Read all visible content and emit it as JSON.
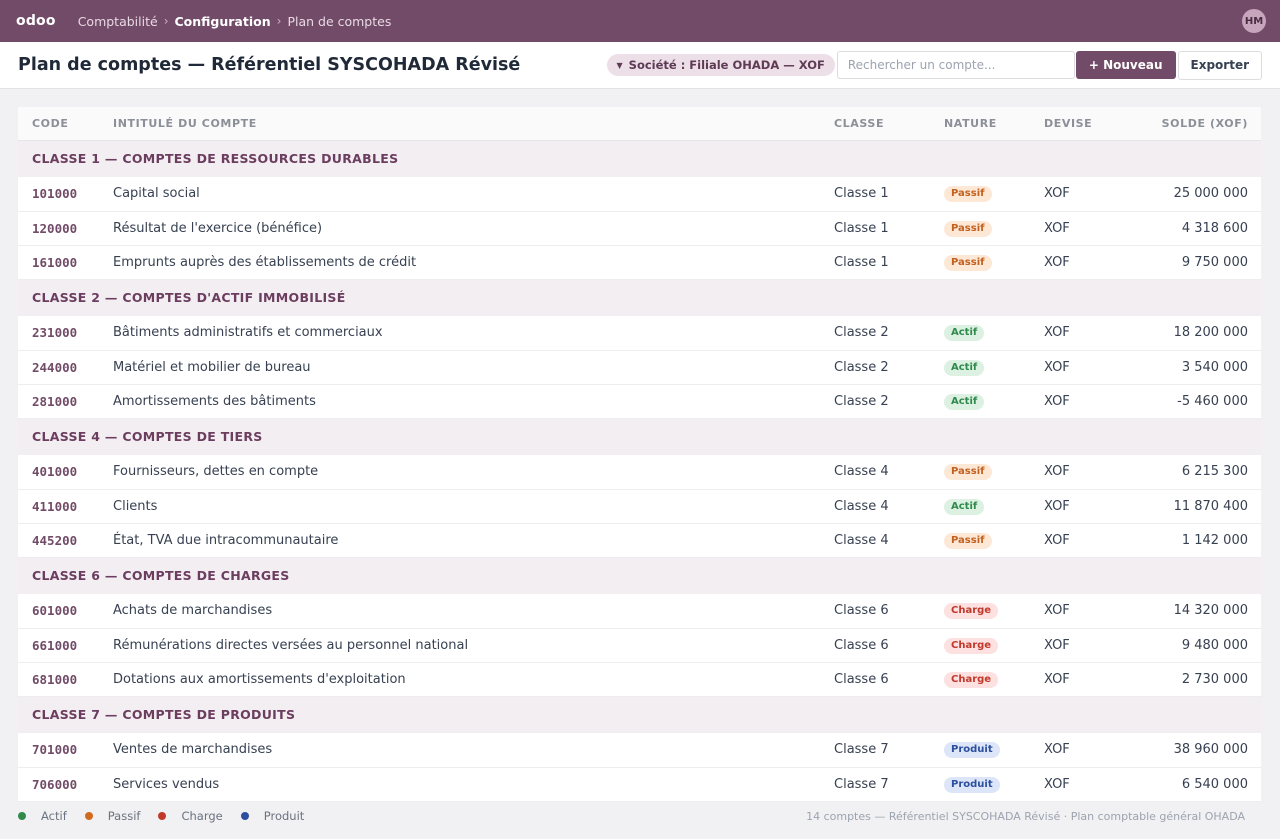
{
  "app": {
    "logo": "odoo",
    "breadcrumb": [
      "Comptabilité",
      "Configuration",
      "Plan de comptes"
    ],
    "user_initials": "HM"
  },
  "control": {
    "title": "Plan de comptes — Référentiel SYSCOHADA Révisé",
    "filter_label": "Société : Filiale OHADA — XOF",
    "search_placeholder": "Rechercher un compte...",
    "new_label": "+ Nouveau",
    "export_label": "Exporter"
  },
  "columns": {
    "code": "CODE",
    "label": "INTITULÉ DU COMPTE",
    "class": "CLASSE",
    "nature": "NATURE",
    "currency": "DEVISE",
    "balance": "SOLDE (XOF)"
  },
  "natures": {
    "Actif": {
      "bg": "#dcf1e2",
      "fg": "#2f8a4c"
    },
    "Passif": {
      "bg": "#fde7d5",
      "fg": "#c2611f"
    },
    "Charge": {
      "bg": "#fde0e0",
      "fg": "#c0392b"
    },
    "Produit": {
      "bg": "#dde6f8",
      "fg": "#2c4f9e"
    }
  },
  "groups": [
    {
      "title": "CLASSE 1 — COMPTES DE RESSOURCES DURABLES",
      "accounts": [
        {
          "code": "101000",
          "label": "Capital social",
          "class": "Classe 1",
          "nature": "Passif",
          "currency": "XOF",
          "balance": "25 000 000"
        },
        {
          "code": "120000",
          "label": "Résultat de l'exercice (bénéfice)",
          "class": "Classe 1",
          "nature": "Passif",
          "currency": "XOF",
          "balance": "4 318 600"
        },
        {
          "code": "161000",
          "label": "Emprunts auprès des établissements de crédit",
          "class": "Classe 1",
          "nature": "Passif",
          "currency": "XOF",
          "balance": "9 750 000"
        }
      ]
    },
    {
      "title": "CLASSE 2 — COMPTES D'ACTIF IMMOBILISÉ",
      "accounts": [
        {
          "code": "231000",
          "label": "Bâtiments administratifs et commerciaux",
          "class": "Classe 2",
          "nature": "Actif",
          "currency": "XOF",
          "balance": "18 200 000"
        },
        {
          "code": "244000",
          "label": "Matériel et mobilier de bureau",
          "class": "Classe 2",
          "nature": "Actif",
          "currency": "XOF",
          "balance": "3 540 000"
        },
        {
          "code": "281000",
          "label": "Amortissements des bâtiments",
          "class": "Classe 2",
          "nature": "Actif",
          "currency": "XOF",
          "balance": "-5 460 000"
        }
      ]
    },
    {
      "title": "CLASSE 4 — COMPTES DE TIERS",
      "accounts": [
        {
          "code": "401000",
          "label": "Fournisseurs, dettes en compte",
          "class": "Classe 4",
          "nature": "Passif",
          "currency": "XOF",
          "balance": "6 215 300"
        },
        {
          "code": "411000",
          "label": "Clients",
          "class": "Classe 4",
          "nature": "Actif",
          "currency": "XOF",
          "balance": "11 870 400"
        },
        {
          "code": "445200",
          "label": "État, TVA due intracommunautaire",
          "class": "Classe 4",
          "nature": "Passif",
          "currency": "XOF",
          "balance": "1 142 000"
        }
      ]
    },
    {
      "title": "CLASSE 6 — COMPTES DE CHARGES",
      "accounts": [
        {
          "code": "601000",
          "label": "Achats de marchandises",
          "class": "Classe 6",
          "nature": "Charge",
          "currency": "XOF",
          "balance": "14 320 000"
        },
        {
          "code": "661000",
          "label": "Rémunérations directes versées au personnel national",
          "class": "Classe 6",
          "nature": "Charge",
          "currency": "XOF",
          "balance": "9 480 000"
        },
        {
          "code": "681000",
          "label": "Dotations aux amortissements d'exploitation",
          "class": "Classe 6",
          "nature": "Charge",
          "currency": "XOF",
          "balance": "2 730 000"
        }
      ]
    },
    {
      "title": "CLASSE 7 — COMPTES DE PRODUITS",
      "accounts": [
        {
          "code": "701000",
          "label": "Ventes de marchandises",
          "class": "Classe 7",
          "nature": "Produit",
          "currency": "XOF",
          "balance": "38 960 000"
        },
        {
          "code": "706000",
          "label": "Services vendus",
          "class": "Classe 7",
          "nature": "Produit",
          "currency": "XOF",
          "balance": "6 540 000"
        }
      ]
    }
  ],
  "legend": [
    {
      "label": "Actif",
      "color": "#2f8a4c"
    },
    {
      "label": "Passif",
      "color": "#d2691e"
    },
    {
      "label": "Charge",
      "color": "#c0392b"
    },
    {
      "label": "Produit",
      "color": "#2c4f9e"
    }
  ],
  "footer": {
    "summary": "14 comptes — Référentiel SYSCOHADA Révisé · Plan comptable général OHADA"
  }
}
